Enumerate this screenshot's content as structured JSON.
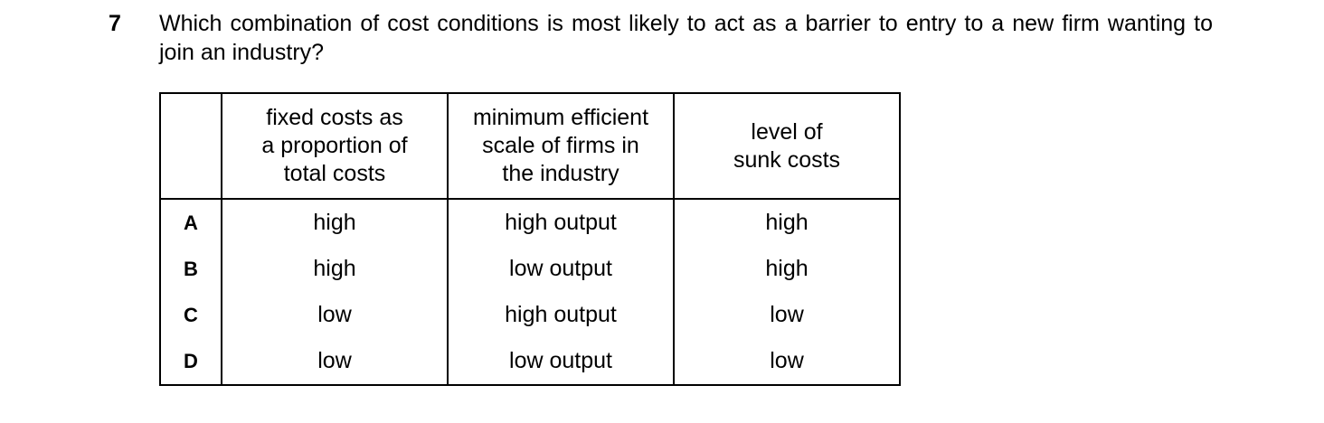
{
  "question": {
    "number": "7",
    "text": "Which combination of cost conditions is most likely to act as a barrier to entry to a new firm wanting to join an industry?"
  },
  "table": {
    "headers": [
      "",
      "fixed costs as a proportion of total costs",
      "minimum efficient scale of firms in the industry",
      "level of sunk costs"
    ],
    "header_lines": [
      [],
      [
        "fixed costs as",
        "a proportion of",
        "total costs"
      ],
      [
        "minimum efficient",
        "scale of firms in",
        "the industry"
      ],
      [
        "level of",
        "sunk costs"
      ]
    ],
    "rows": [
      {
        "option": "A",
        "fixed": "high",
        "mes": "high output",
        "sunk": "high"
      },
      {
        "option": "B",
        "fixed": "high",
        "mes": "low output",
        "sunk": "high"
      },
      {
        "option": "C",
        "fixed": "low",
        "mes": "high output",
        "sunk": "low"
      },
      {
        "option": "D",
        "fixed": "low",
        "mes": "low output",
        "sunk": "low"
      }
    ]
  }
}
